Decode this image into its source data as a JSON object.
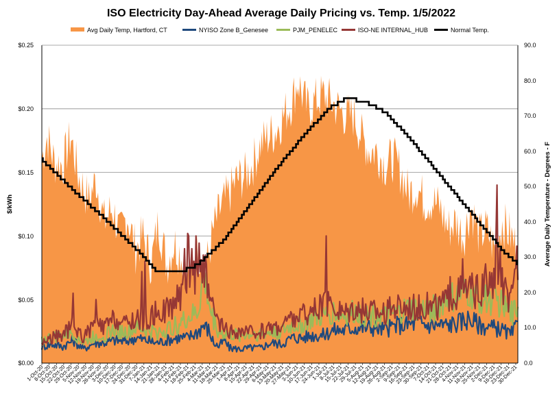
{
  "chart_data": {
    "type": "area",
    "title": "ISO Electricity Day-Ahead Average Daily Pricing vs. Temp. 1/5/2022",
    "ylabel_left": "$/kWh",
    "ylabel_right": "Average Daily Temperature - Degrees - F",
    "ylim_left": [
      0,
      0.25
    ],
    "ylim_right": [
      0,
      90
    ],
    "left_ticks": [
      "$0.00",
      "$0.05",
      "$0.10",
      "$0.15",
      "$0.20",
      "$0.25"
    ],
    "right_ticks": [
      "0.0",
      "10.0",
      "20.0",
      "30.0",
      "40.0",
      "50.0",
      "60.0",
      "70.0",
      "80.0",
      "90.0"
    ],
    "grid": "horizontal",
    "legend_position": "top",
    "x_tick_labels": [
      "1-Oct-20",
      "8-Oct-20",
      "15-Oct-20",
      "22-Oct-20",
      "29-Oct-20",
      "5-Nov-20",
      "12-Nov-20",
      "19-Nov-20",
      "26-Nov-20",
      "3-Dec-20",
      "10-Dec-20",
      "17-Dec-20",
      "24-Dec-20",
      "31-Dec-20",
      "7-Jan-21",
      "14-Jan-21",
      "21-Jan-21",
      "28-Jan-21",
      "4-Feb-21",
      "11-Feb-21",
      "18-Feb-21",
      "25-Feb-21",
      "4-Mar-21",
      "11-Mar-21",
      "18-Mar-21",
      "25-Mar-21",
      "1-Apr-21",
      "8-Apr-21",
      "15-Apr-21",
      "22-Apr-21",
      "29-Apr-21",
      "6-May-21",
      "13-May-21",
      "20-May-21",
      "27-May-21",
      "3-Jun-21",
      "10-Jun-21",
      "17-Jun-21",
      "24-Jun-21",
      "1-Jul-21",
      "8-Jul-21",
      "15-Jul-21",
      "22-Jul-21",
      "29-Jul-21",
      "5-Aug-21",
      "12-Aug-21",
      "19-Aug-21",
      "26-Aug-21",
      "2-Sep-21",
      "9-Sep-21",
      "16-Sep-21",
      "23-Sep-21",
      "30-Sep-21",
      "7-Oct-21",
      "14-Oct-21",
      "21-Oct-21",
      "28-Oct-21",
      "4-Nov-21",
      "11-Nov-21",
      "18-Nov-21",
      "25-Nov-21",
      "2-Dec-21",
      "9-Dec-21",
      "16-Dec-21",
      "23-Dec-21",
      "30-Dec-21"
    ],
    "x_label_step": 7,
    "x_count": 458,
    "series": [
      {
        "name": "Avg Daily Temp, Hartford, CT",
        "kind": "area",
        "axis": "right",
        "color": "#F79646",
        "anchors": [
          [
            0,
            58
          ],
          [
            5,
            64
          ],
          [
            12,
            57
          ],
          [
            20,
            56
          ],
          [
            28,
            64
          ],
          [
            35,
            53
          ],
          [
            45,
            46
          ],
          [
            52,
            52
          ],
          [
            60,
            40
          ],
          [
            68,
            44
          ],
          [
            75,
            36
          ],
          [
            82,
            42
          ],
          [
            90,
            32
          ],
          [
            97,
            36
          ],
          [
            105,
            28
          ],
          [
            112,
            40
          ],
          [
            120,
            28
          ],
          [
            127,
            34
          ],
          [
            135,
            30
          ],
          [
            142,
            24
          ],
          [
            150,
            32
          ],
          [
            157,
            26
          ],
          [
            165,
            38
          ],
          [
            172,
            44
          ],
          [
            180,
            48
          ],
          [
            187,
            52
          ],
          [
            195,
            53
          ],
          [
            202,
            56
          ],
          [
            210,
            62
          ],
          [
            217,
            64
          ],
          [
            225,
            66
          ],
          [
            232,
            70
          ],
          [
            240,
            74
          ],
          [
            246,
            80
          ],
          [
            250,
            76
          ],
          [
            255,
            72
          ],
          [
            262,
            74
          ],
          [
            270,
            76
          ],
          [
            277,
            74
          ],
          [
            285,
            72
          ],
          [
            292,
            70
          ],
          [
            300,
            70
          ],
          [
            307,
            64
          ],
          [
            315,
            60
          ],
          [
            322,
            60
          ],
          [
            330,
            56
          ],
          [
            337,
            58
          ],
          [
            345,
            54
          ],
          [
            352,
            48
          ],
          [
            360,
            50
          ],
          [
            367,
            46
          ],
          [
            375,
            46
          ],
          [
            382,
            44
          ],
          [
            390,
            38
          ],
          [
            397,
            40
          ],
          [
            405,
            36
          ],
          [
            412,
            44
          ],
          [
            420,
            36
          ],
          [
            427,
            38
          ],
          [
            435,
            32
          ],
          [
            442,
            40
          ],
          [
            450,
            36
          ],
          [
            457,
            32
          ]
        ]
      },
      {
        "name": "NYISO Zone B_Genesee",
        "kind": "line",
        "axis": "left",
        "color": "#1F497D",
        "anchors": [
          [
            0,
            0.013
          ],
          [
            10,
            0.015
          ],
          [
            20,
            0.013
          ],
          [
            30,
            0.018
          ],
          [
            40,
            0.011
          ],
          [
            50,
            0.016
          ],
          [
            60,
            0.016
          ],
          [
            70,
            0.018
          ],
          [
            80,
            0.017
          ],
          [
            90,
            0.02
          ],
          [
            100,
            0.018
          ],
          [
            110,
            0.016
          ],
          [
            120,
            0.018
          ],
          [
            130,
            0.02
          ],
          [
            140,
            0.02
          ],
          [
            150,
            0.025
          ],
          [
            155,
            0.03
          ],
          [
            160,
            0.026
          ],
          [
            165,
            0.016
          ],
          [
            170,
            0.013
          ],
          [
            175,
            0.018
          ],
          [
            180,
            0.012
          ],
          [
            190,
            0.011
          ],
          [
            200,
            0.012
          ],
          [
            210,
            0.012
          ],
          [
            220,
            0.016
          ],
          [
            230,
            0.015
          ],
          [
            240,
            0.02
          ],
          [
            250,
            0.02
          ],
          [
            260,
            0.022
          ],
          [
            270,
            0.022
          ],
          [
            280,
            0.026
          ],
          [
            290,
            0.026
          ],
          [
            300,
            0.028
          ],
          [
            310,
            0.028
          ],
          [
            320,
            0.028
          ],
          [
            330,
            0.026
          ],
          [
            340,
            0.03
          ],
          [
            350,
            0.03
          ],
          [
            360,
            0.032
          ],
          [
            370,
            0.03
          ],
          [
            380,
            0.03
          ],
          [
            390,
            0.03
          ],
          [
            400,
            0.032
          ],
          [
            410,
            0.035
          ],
          [
            420,
            0.03
          ],
          [
            430,
            0.028
          ],
          [
            440,
            0.027
          ],
          [
            450,
            0.022
          ],
          [
            457,
            0.03
          ]
        ]
      },
      {
        "name": "PJM_PENELEC",
        "kind": "line",
        "axis": "left",
        "color": "#9BBB59",
        "anchors": [
          [
            0,
            0.018
          ],
          [
            10,
            0.02
          ],
          [
            20,
            0.021
          ],
          [
            30,
            0.024
          ],
          [
            40,
            0.016
          ],
          [
            50,
            0.021
          ],
          [
            60,
            0.022
          ],
          [
            70,
            0.026
          ],
          [
            80,
            0.024
          ],
          [
            90,
            0.027
          ],
          [
            100,
            0.026
          ],
          [
            110,
            0.024
          ],
          [
            120,
            0.026
          ],
          [
            130,
            0.03
          ],
          [
            140,
            0.035
          ],
          [
            150,
            0.04
          ],
          [
            154,
            0.062
          ],
          [
            158,
            0.06
          ],
          [
            162,
            0.04
          ],
          [
            170,
            0.024
          ],
          [
            180,
            0.022
          ],
          [
            190,
            0.022
          ],
          [
            200,
            0.023
          ],
          [
            210,
            0.023
          ],
          [
            220,
            0.024
          ],
          [
            230,
            0.025
          ],
          [
            240,
            0.029
          ],
          [
            250,
            0.03
          ],
          [
            260,
            0.034
          ],
          [
            270,
            0.036
          ],
          [
            280,
            0.04
          ],
          [
            290,
            0.037
          ],
          [
            300,
            0.04
          ],
          [
            310,
            0.038
          ],
          [
            320,
            0.038
          ],
          [
            330,
            0.036
          ],
          [
            340,
            0.038
          ],
          [
            350,
            0.042
          ],
          [
            360,
            0.042
          ],
          [
            370,
            0.042
          ],
          [
            380,
            0.044
          ],
          [
            390,
            0.05
          ],
          [
            400,
            0.052
          ],
          [
            410,
            0.055
          ],
          [
            420,
            0.05
          ],
          [
            430,
            0.05
          ],
          [
            440,
            0.048
          ],
          [
            450,
            0.038
          ],
          [
            457,
            0.045
          ]
        ]
      },
      {
        "name": "ISO-NE INTERNAL_HUB",
        "kind": "line",
        "axis": "left",
        "color": "#953735",
        "anchors": [
          [
            0,
            0.016
          ],
          [
            10,
            0.02
          ],
          [
            20,
            0.022
          ],
          [
            30,
            0.03
          ],
          [
            40,
            0.02
          ],
          [
            50,
            0.03
          ],
          [
            60,
            0.028
          ],
          [
            70,
            0.035
          ],
          [
            80,
            0.03
          ],
          [
            90,
            0.035
          ],
          [
            100,
            0.032
          ],
          [
            110,
            0.04
          ],
          [
            120,
            0.042
          ],
          [
            130,
            0.05
          ],
          [
            140,
            0.06
          ],
          [
            150,
            0.075
          ],
          [
            155,
            0.085
          ],
          [
            160,
            0.05
          ],
          [
            170,
            0.03
          ],
          [
            180,
            0.024
          ],
          [
            190,
            0.024
          ],
          [
            200,
            0.024
          ],
          [
            210,
            0.025
          ],
          [
            220,
            0.028
          ],
          [
            230,
            0.03
          ],
          [
            240,
            0.035
          ],
          [
            250,
            0.038
          ],
          [
            260,
            0.04
          ],
          [
            270,
            0.045
          ],
          [
            280,
            0.045
          ],
          [
            290,
            0.04
          ],
          [
            300,
            0.045
          ],
          [
            310,
            0.04
          ],
          [
            320,
            0.042
          ],
          [
            330,
            0.04
          ],
          [
            340,
            0.045
          ],
          [
            350,
            0.045
          ],
          [
            360,
            0.045
          ],
          [
            370,
            0.045
          ],
          [
            380,
            0.045
          ],
          [
            390,
            0.05
          ],
          [
            400,
            0.055
          ],
          [
            410,
            0.058
          ],
          [
            420,
            0.055
          ],
          [
            430,
            0.06
          ],
          [
            440,
            0.065
          ],
          [
            450,
            0.045
          ],
          [
            457,
            0.075
          ]
        ],
        "spikes": [
          [
            30,
            0.055
          ],
          [
            52,
            0.05
          ],
          [
            96,
            0.072
          ],
          [
            99,
            0.08
          ],
          [
            136,
            0.07
          ],
          [
            137,
            0.09
          ],
          [
            140,
            0.102
          ],
          [
            141,
            0.1
          ],
          [
            144,
            0.09
          ],
          [
            148,
            0.1
          ],
          [
            155,
            0.085
          ],
          [
            273,
            0.1
          ],
          [
            392,
            0.068
          ],
          [
            404,
            0.082
          ],
          [
            426,
            0.078
          ],
          [
            436,
            0.1
          ],
          [
            437,
            0.14
          ],
          [
            440,
            0.09
          ],
          [
            456,
            0.092
          ]
        ]
      },
      {
        "name": "Normal Temp.",
        "kind": "line",
        "axis": "right",
        "color": "#000000",
        "anchors": [
          [
            0,
            57.5
          ],
          [
            30,
            49
          ],
          [
            60,
            41
          ],
          [
            95,
            31
          ],
          [
            110,
            26
          ],
          [
            135,
            26
          ],
          [
            150,
            28
          ],
          [
            175,
            35
          ],
          [
            200,
            45
          ],
          [
            225,
            55
          ],
          [
            250,
            64
          ],
          [
            275,
            72
          ],
          [
            292,
            75
          ],
          [
            310,
            74
          ],
          [
            330,
            71
          ],
          [
            355,
            63
          ],
          [
            380,
            54
          ],
          [
            405,
            45
          ],
          [
            425,
            38
          ],
          [
            445,
            31
          ],
          [
            457,
            28
          ]
        ]
      }
    ]
  }
}
